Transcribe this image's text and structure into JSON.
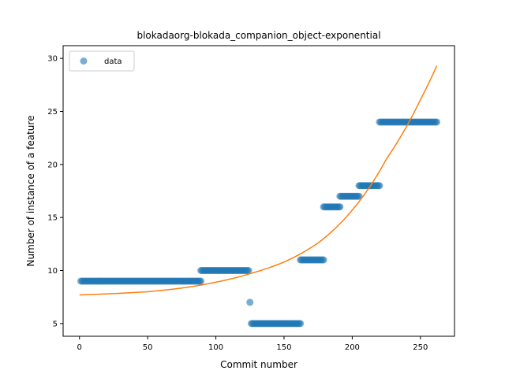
{
  "chart_data": {
    "type": "scatter",
    "title": "blokadaorg-blokada_companion_object-exponential",
    "xlabel": "Commit number",
    "ylabel": "Number of instance of a feature",
    "xlim": [
      -12,
      275
    ],
    "ylim": [
      3.8,
      31.2
    ],
    "xticks": [
      0,
      50,
      100,
      150,
      200,
      250
    ],
    "yticks": [
      5,
      10,
      15,
      20,
      25,
      30
    ],
    "grid": false,
    "legend": {
      "placement": "top-left",
      "entries": [
        "data"
      ]
    },
    "series": [
      {
        "name": "data",
        "kind": "points",
        "color": "#1f77b4",
        "segments": [
          {
            "x_start": 1,
            "x_end": 89,
            "y": 9
          },
          {
            "x_start": 89,
            "x_end": 124,
            "y": 10
          },
          {
            "x_start": 125,
            "x_end": 125,
            "y": 7
          },
          {
            "x_start": 126,
            "x_end": 162,
            "y": 5
          },
          {
            "x_start": 162,
            "x_end": 179,
            "y": 11
          },
          {
            "x_start": 179,
            "x_end": 191,
            "y": 16
          },
          {
            "x_start": 191,
            "x_end": 205,
            "y": 17
          },
          {
            "x_start": 205,
            "x_end": 220,
            "y": 18
          },
          {
            "x_start": 220,
            "x_end": 262,
            "y": 24
          }
        ]
      },
      {
        "kind": "line",
        "color": "#ff7f0e",
        "x": [
          0,
          50,
          100,
          125,
          150,
          175,
          200,
          225,
          250,
          262
        ],
        "y": [
          7.7,
          8.0,
          8.9,
          9.7,
          10.8,
          12.6,
          15.7,
          20.5,
          26.1,
          29.3
        ]
      }
    ]
  }
}
